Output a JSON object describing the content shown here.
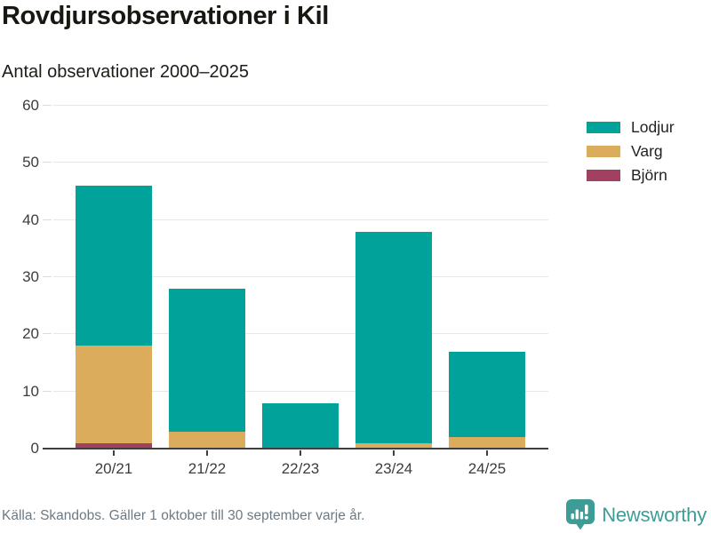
{
  "header": {
    "title": "Rovdjursobservationer i Kil",
    "subtitle": "Antal observationer 2000–2025"
  },
  "chart_data": {
    "type": "bar",
    "stacked": true,
    "title": "Rovdjursobservationer i Kil",
    "subtitle": "Antal observationer 2000–2025",
    "categories": [
      "20/21",
      "21/22",
      "22/23",
      "23/24",
      "24/25"
    ],
    "series": [
      {
        "name": "Björn",
        "color": "#A34061",
        "values": [
          1,
          0,
          0,
          0,
          0
        ]
      },
      {
        "name": "Varg",
        "color": "#DBAC5C",
        "values": [
          17,
          3,
          0,
          1,
          2
        ]
      },
      {
        "name": "Lodjur",
        "color": "#00A29A",
        "values": [
          28,
          25,
          8,
          37,
          15
        ]
      }
    ],
    "totals": [
      46,
      28,
      8,
      38,
      17
    ],
    "xlabel": "",
    "ylabel": "",
    "ylim": [
      0,
      60
    ],
    "yticks": [
      0,
      10,
      20,
      30,
      40,
      50,
      60
    ],
    "grid": "horizontal",
    "legend_position": "right",
    "legend_order_top_to_bottom": [
      "Lodjur",
      "Varg",
      "Björn"
    ]
  },
  "footer": {
    "source": "Källa: Skandobs. Gäller 1 oktober till 30 september varje år.",
    "brand": "Newsworthy"
  },
  "icons": {
    "brand_logo": "bar-chart-speech-bubble-icon"
  },
  "colors": {
    "accent": "#3E9C96",
    "grid": "#E8E8E8",
    "axis": "#3F3F3F",
    "tick_text": "#3C3C3C",
    "title_text": "#181812",
    "muted_text": "#6E7A83"
  }
}
